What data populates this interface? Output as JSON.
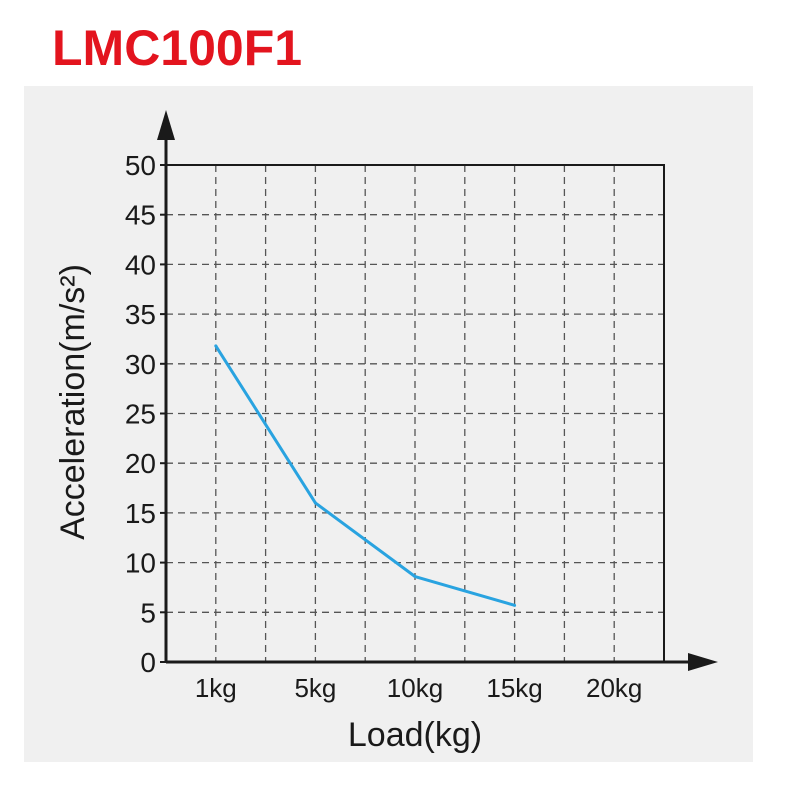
{
  "chart_data": {
    "type": "line",
    "title": "LMC100F1",
    "xlabel": "Load(kg)",
    "ylabel": "Acceleration(m/s²)",
    "categories": [
      "1kg",
      "5kg",
      "10kg",
      "15kg",
      "20kg"
    ],
    "ylim": [
      0,
      50
    ],
    "yticks": [
      0,
      5,
      10,
      15,
      20,
      25,
      30,
      35,
      40,
      45,
      50
    ],
    "grid": true,
    "series": [
      {
        "x": [
          "1kg",
          "5kg",
          "10kg",
          "15kg"
        ],
        "values": [
          31.8,
          16,
          8.6,
          5.7
        ]
      }
    ],
    "colors": {
      "title": "#e3141e",
      "line": "#29a3e0",
      "panel": "#f0f0f0",
      "grid": "#555555"
    }
  }
}
